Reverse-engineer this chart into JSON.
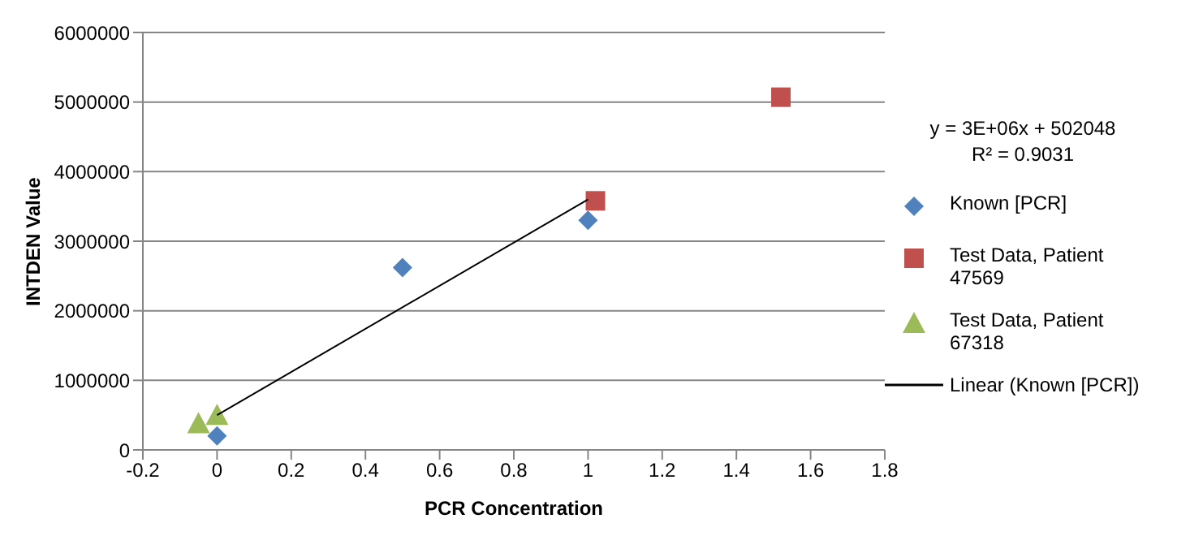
{
  "chart_data": {
    "type": "scatter",
    "xlabel": "PCR Concentration",
    "ylabel": "INTDEN Value",
    "xlim": [
      -0.2,
      1.8
    ],
    "xticks": [
      -0.2,
      0,
      0.2,
      0.4,
      0.6,
      0.8,
      1,
      1.2,
      1.4,
      1.6,
      1.8
    ],
    "ylim": [
      0,
      6000000
    ],
    "yticks": [
      0,
      1000000,
      2000000,
      3000000,
      4000000,
      5000000,
      6000000
    ],
    "grid": "y",
    "legend": "right",
    "annotations": [
      "y = 3E+06x + 502048",
      "R² = 0.9031"
    ],
    "series": [
      {
        "name": "Known [PCR]",
        "color": "#4f81bd",
        "marker": "diamond",
        "x": [
          0,
          0.5,
          1
        ],
        "values": [
          200000,
          2620000,
          3300000
        ]
      },
      {
        "name": "Test Data, Patient 47569",
        "color": "#c0504d",
        "marker": "square",
        "x": [
          1.02,
          1.52
        ],
        "values": [
          3580000,
          5070000
        ]
      },
      {
        "name": "Test Data, Patient 67318",
        "color": "#9bbb59",
        "marker": "triangle",
        "x": [
          -0.05,
          0
        ],
        "values": [
          380000,
          500000
        ]
      },
      {
        "name": "Linear (Known [PCR])",
        "type": "line",
        "color": "#000000",
        "marker": "none",
        "x": [
          0,
          1
        ],
        "values": [
          500000,
          3600000
        ]
      }
    ]
  }
}
